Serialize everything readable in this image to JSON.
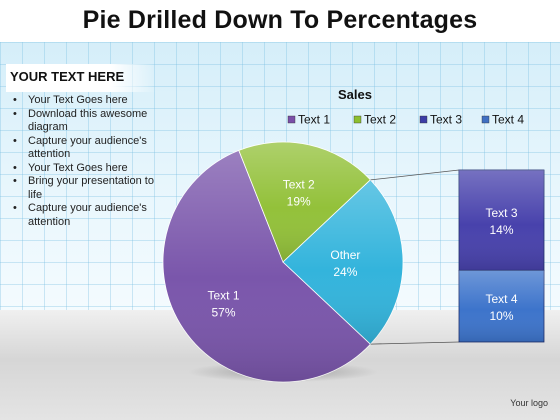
{
  "page_title": "Pie Drilled Down To  Percentages",
  "side_panel": {
    "heading": "YOUR TEXT HERE",
    "bullets": [
      "Your Text Goes here",
      "Download this awesome diagram",
      "Capture your audience's attention",
      "Your Text Goes here",
      "Bring your presentation to life",
      "Capture your audience's attention"
    ]
  },
  "logo_text": "Your logo",
  "chart_data": {
    "type": "pie",
    "title": "Sales",
    "legend_position": "top",
    "legend": [
      {
        "name": "Text 1",
        "color": "#7a4fa8"
      },
      {
        "name": "Text 2",
        "color": "#8dbf2e"
      },
      {
        "name": "Text 3",
        "color": "#3c3ca6"
      },
      {
        "name": "Text 4",
        "color": "#3f6fc2"
      }
    ],
    "slices": [
      {
        "label": "Text 1",
        "value": 57,
        "value_label": "57%",
        "color": "#7a56ab"
      },
      {
        "label": "Text 2",
        "value": 19,
        "value_label": "19%",
        "color": "#93c13a"
      },
      {
        "label": "Other",
        "value": 24,
        "value_label": "24%",
        "color": "#33b4dc"
      }
    ],
    "drilldown": {
      "of": "Other",
      "segments": [
        {
          "label": "Text 3",
          "value": 14,
          "value_label": "14%",
          "color": "#4842ac"
        },
        {
          "label": "Text 4",
          "value": 10,
          "value_label": "10%",
          "color": "#3d74cb"
        }
      ]
    }
  }
}
